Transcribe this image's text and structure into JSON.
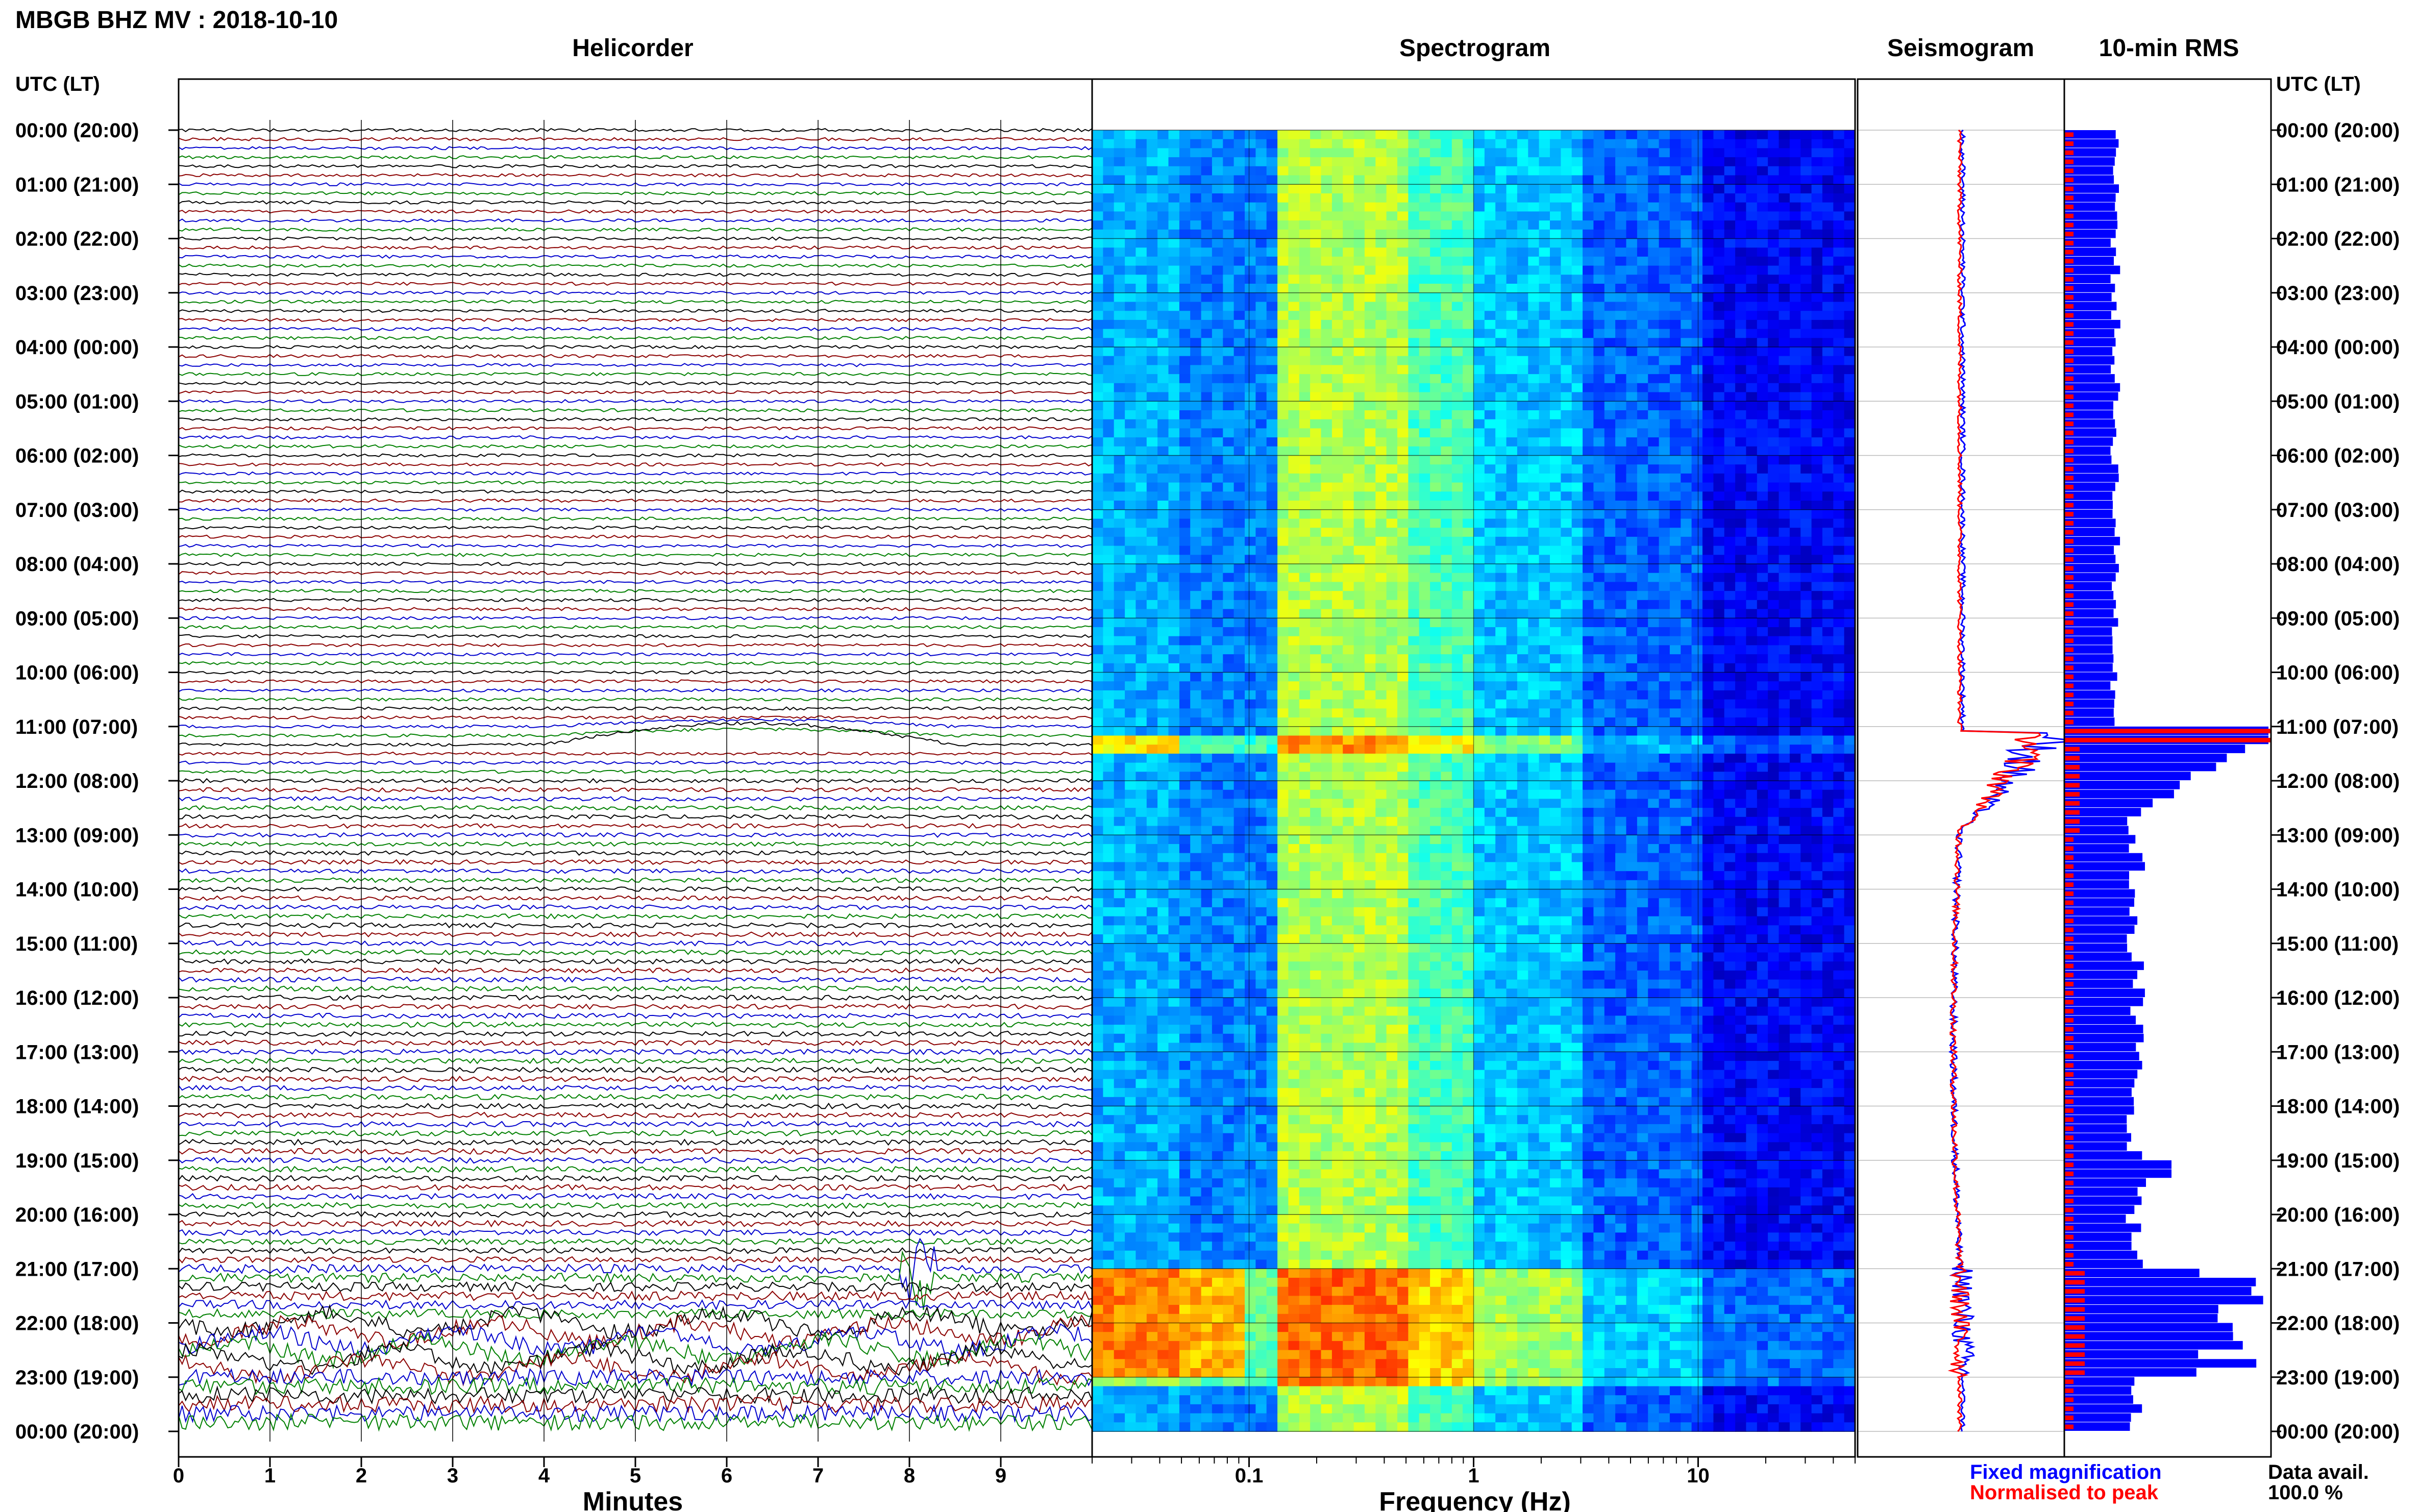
{
  "chart_data": {
    "title": "MBGB BHZ MV : 2018-10-10",
    "time_axis_label": "UTC (LT)",
    "time_ticks": [
      "00:00 (20:00)",
      "01:00 (21:00)",
      "02:00 (22:00)",
      "03:00 (23:00)",
      "04:00 (00:00)",
      "05:00 (01:00)",
      "06:00 (02:00)",
      "07:00 (03:00)",
      "08:00 (04:00)",
      "09:00 (05:00)",
      "10:00 (06:00)",
      "11:00 (07:00)",
      "12:00 (08:00)",
      "13:00 (09:00)",
      "14:00 (10:00)",
      "15:00 (11:00)",
      "16:00 (12:00)",
      "17:00 (13:00)",
      "18:00 (14:00)",
      "19:00 (15:00)",
      "20:00 (16:00)",
      "21:00 (17:00)",
      "22:00 (18:00)",
      "23:00 (19:00)",
      "00:00 (20:00)"
    ],
    "panels": [
      {
        "id": "helicorder",
        "type": "line",
        "title": "Helicorder",
        "xlabel": "Minutes",
        "xticks": [
          "0",
          "1",
          "2",
          "3",
          "4",
          "5",
          "6",
          "7",
          "8",
          "9"
        ],
        "xlim": [
          0,
          10
        ],
        "trace_colors": [
          "#000000",
          "#8b0000",
          "#0000cd",
          "#008000"
        ],
        "traces_per_hour": 6,
        "events": [
          {
            "time_utc": "11:00",
            "note": "long-period swell on trace"
          },
          {
            "time_utc": "21:00",
            "minute": 8,
            "note": "burst"
          },
          {
            "time_utc": "22:00",
            "note": "large-amplitude oscillations"
          }
        ]
      },
      {
        "id": "spectrogram",
        "type": "heatmap",
        "title": "Spectrogram",
        "xlabel": "Frequency (Hz)",
        "xscale": "log",
        "xlim": [
          0.02,
          50
        ],
        "xticks": [
          "0.1",
          "1",
          "10"
        ],
        "colormap": "jet",
        "notes": "energy band near 0.1-1 Hz; broadband energy increase at 11:00 and 21:00-23:00"
      },
      {
        "id": "seismogram",
        "type": "line",
        "title": "Seismogram",
        "series": [
          {
            "name": "Fixed magnification",
            "color": "#0000ff"
          },
          {
            "name": "Normalised to peak",
            "color": "#ff0000"
          }
        ]
      },
      {
        "id": "rms",
        "type": "bar",
        "title": "10-min RMS",
        "series_colors": [
          "#0000ff",
          "#ff0000"
        ],
        "notes": "peaks near 11:00-12:00 and 21:00-23:00"
      }
    ],
    "legend": [
      "Fixed magnification",
      "Normalised to peak"
    ],
    "data_availability_label": "Data avail.",
    "data_availability_value": "100.0 %"
  }
}
